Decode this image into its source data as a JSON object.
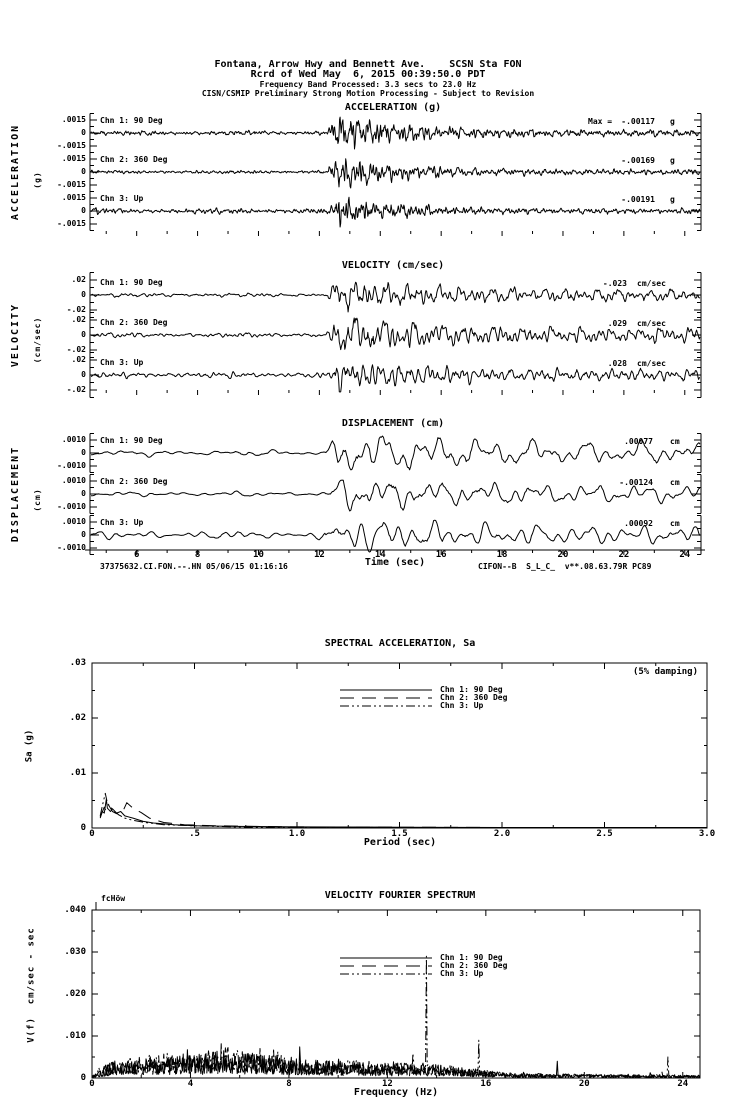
{
  "header": {
    "line1": "Fontana, Arrow Hwy and Bennett Ave.    SCSN Sta FON",
    "line2": "Rcrd of Wed May  6, 2015 00:39:50.0 PDT",
    "line3": "Frequency Band Processed: 3.3 secs to 23.0 Hz",
    "line4": "CISN/CSMIP Preliminary Strong Motion Processing - Subject to Revision"
  },
  "footer": {
    "left": "37375632.CI.FON.--.HN 05/06/15 01:16:16",
    "right": "CIFON--B  S_L_C_  v**.08.63.79R PC89"
  },
  "chart_data": [
    {
      "id": "timeseries",
      "type": "line",
      "xlabel": "Time (sec)",
      "x_range_sec": [
        4.5,
        24.5
      ],
      "x_ticks": [
        6,
        8,
        10,
        12,
        14,
        16,
        18,
        20,
        22,
        24
      ],
      "event_onset_sec": 12.2,
      "sections": [
        {
          "title": "ACCELERATION (g)",
          "side_label": "ACCELERATION",
          "side_unit": "(g)",
          "ylim": [
            -0.0015,
            0.0015
          ],
          "y_tick_labels": [
            ".0015",
            "0",
            "-.0015"
          ],
          "channels": [
            {
              "label": "Chn 1: 90 Deg",
              "max_prefix": "Max =",
              "max_value": "-.00117",
              "unit": "g"
            },
            {
              "label": "Chn 2: 360 Deg",
              "max_value": "-.00169",
              "unit": "g"
            },
            {
              "label": "Chn 3: Up",
              "max_value": "-.00191",
              "unit": "g"
            }
          ]
        },
        {
          "title": "VELOCITY (cm/sec)",
          "side_label": "VELOCITY",
          "side_unit": "(cm/sec)",
          "ylim": [
            -0.02,
            0.02
          ],
          "y_tick_labels": [
            ".02",
            "0",
            "-.02"
          ],
          "channels": [
            {
              "label": "Chn 1: 90 Deg",
              "max_value": "-.023",
              "unit": "cm/sec"
            },
            {
              "label": "Chn 2: 360 Deg",
              "max_value": ".029",
              "unit": "cm/sec"
            },
            {
              "label": "Chn 3: Up",
              "max_value": ".028",
              "unit": "cm/sec"
            }
          ]
        },
        {
          "title": "DISPLACEMENT (cm)",
          "side_label": "DISPLACEMENT",
          "side_unit": "(cm)",
          "ylim": [
            -0.001,
            0.001
          ],
          "y_tick_labels": [
            ".0010",
            "0",
            "-.0010"
          ],
          "channels": [
            {
              "label": "Chn 1: 90 Deg",
              "max_value": ".00077",
              "unit": "cm"
            },
            {
              "label": "Chn 2: 360 Deg",
              "max_value": "-.00124",
              "unit": "cm"
            },
            {
              "label": "Chn 3: Up",
              "max_value": ".00092",
              "unit": "cm"
            }
          ]
        }
      ]
    },
    {
      "id": "spectral_acceleration",
      "type": "line",
      "title": "SPECTRAL ACCELERATION, Sa",
      "annotation": "(5% damping)",
      "xlabel": "Period (sec)",
      "ylabel": "Sa (g)",
      "xlim": [
        0,
        3.0
      ],
      "ylim": [
        0,
        0.03
      ],
      "x_tick_labels": [
        "0",
        ".5",
        "1.0",
        "1.5",
        "2.0",
        "2.5",
        "3.0"
      ],
      "y_tick_labels": [
        "0",
        ".01",
        ".02",
        ".03"
      ],
      "legend": [
        {
          "label": "Chn 1: 90 Deg",
          "style": "solid"
        },
        {
          "label": "Chn 2: 360 Deg",
          "style": "long-dash"
        },
        {
          "label": "Chn 3: Up",
          "style": "dash-dot-dot"
        }
      ],
      "series": [
        {
          "name": "Chn 1: 90 Deg",
          "points": [
            [
              0.04,
              0.0018
            ],
            [
              0.05,
              0.003
            ],
            [
              0.06,
              0.0027
            ],
            [
              0.07,
              0.0052
            ],
            [
              0.075,
              0.0036
            ],
            [
              0.09,
              0.003
            ],
            [
              0.1,
              0.0035
            ],
            [
              0.12,
              0.0027
            ],
            [
              0.14,
              0.003
            ],
            [
              0.16,
              0.0022
            ],
            [
              0.2,
              0.0018
            ],
            [
              0.25,
              0.0012
            ],
            [
              0.3,
              0.0009
            ],
            [
              0.4,
              0.0006
            ],
            [
              0.5,
              0.0004
            ],
            [
              0.7,
              0.0003
            ],
            [
              1.0,
              0.0002
            ],
            [
              1.5,
              0.00015
            ],
            [
              2.0,
              0.0001
            ],
            [
              2.5,
              0.0001
            ],
            [
              3.0,
              0.0001
            ]
          ]
        },
        {
          "name": "Chn 2: 360 Deg",
          "points": [
            [
              0.04,
              0.002
            ],
            [
              0.06,
              0.0038
            ],
            [
              0.07,
              0.003
            ],
            [
              0.08,
              0.0042
            ],
            [
              0.1,
              0.003
            ],
            [
              0.12,
              0.0026
            ],
            [
              0.15,
              0.003
            ],
            [
              0.17,
              0.0046
            ],
            [
              0.2,
              0.0036
            ],
            [
              0.24,
              0.0028
            ],
            [
              0.28,
              0.0018
            ],
            [
              0.35,
              0.001
            ],
            [
              0.45,
              0.0006
            ],
            [
              0.6,
              0.0004
            ],
            [
              0.8,
              0.0003
            ],
            [
              1.0,
              0.0002
            ],
            [
              1.5,
              0.00015
            ],
            [
              2.0,
              0.0001
            ],
            [
              3.0,
              0.0001
            ]
          ]
        },
        {
          "name": "Chn 3: Up",
          "points": [
            [
              0.04,
              0.0022
            ],
            [
              0.05,
              0.004
            ],
            [
              0.065,
              0.0063
            ],
            [
              0.075,
              0.0045
            ],
            [
              0.09,
              0.0038
            ],
            [
              0.11,
              0.003
            ],
            [
              0.13,
              0.0024
            ],
            [
              0.16,
              0.0018
            ],
            [
              0.2,
              0.0014
            ],
            [
              0.26,
              0.001
            ],
            [
              0.35,
              0.0006
            ],
            [
              0.5,
              0.0004
            ],
            [
              0.7,
              0.0002
            ],
            [
              1.0,
              0.00015
            ],
            [
              1.5,
              0.0001
            ],
            [
              2.0,
              0.0001
            ],
            [
              3.0,
              8e-05
            ]
          ]
        }
      ]
    },
    {
      "id": "velocity_fourier_spectrum",
      "type": "line",
      "title": "VELOCITY FOURIER SPECTRUM",
      "corner_label": "fcHöw",
      "xlabel": "Frequency (Hz)",
      "ylabel": "V(f)  cm/sec - sec",
      "xlim": [
        0,
        24.7
      ],
      "ylim": [
        0,
        0.04
      ],
      "x_tick_labels": [
        "0",
        "4",
        "8",
        "12",
        "16",
        "20",
        "24"
      ],
      "y_tick_labels": [
        "0",
        ".010",
        ".020",
        ".030",
        ".040"
      ],
      "legend": [
        {
          "label": "Chn 1: 90 Deg",
          "style": "solid"
        },
        {
          "label": "Chn 2: 360 Deg",
          "style": "long-dash"
        },
        {
          "label": "Chn 3: Up",
          "style": "dash-dot-dot"
        }
      ],
      "noise_envelope": [
        [
          0,
          0.0005
        ],
        [
          0.5,
          0.003
        ],
        [
          1,
          0.0045
        ],
        [
          2,
          0.005
        ],
        [
          3,
          0.0055
        ],
        [
          4,
          0.006
        ],
        [
          5,
          0.0065
        ],
        [
          5.5,
          0.007
        ],
        [
          6,
          0.0065
        ],
        [
          7,
          0.0068
        ],
        [
          7.5,
          0.006
        ],
        [
          8,
          0.0046
        ],
        [
          9,
          0.0045
        ],
        [
          10,
          0.0042
        ],
        [
          11,
          0.0038
        ],
        [
          12,
          0.0036
        ],
        [
          13,
          0.0035
        ],
        [
          14,
          0.0032
        ],
        [
          15,
          0.0025
        ],
        [
          16,
          0.0018
        ],
        [
          17,
          0.0012
        ],
        [
          18,
          0.001
        ],
        [
          19,
          0.001
        ],
        [
          20,
          0.0009
        ],
        [
          21,
          0.0008
        ],
        [
          22,
          0.0008
        ],
        [
          23,
          0.0008
        ],
        [
          24,
          0.0007
        ],
        [
          24.7,
          0.0006
        ]
      ],
      "spikes": [
        {
          "channel": "Chn 3: Up",
          "freq_hz": 13.6,
          "value": 0.029
        },
        {
          "channel": "Chn 3: Up",
          "freq_hz": 15.7,
          "value": 0.009
        },
        {
          "channel": "Chn 1: 90 Deg",
          "freq_hz": 18.9,
          "value": 0.004
        },
        {
          "channel": "Chn 3: Up",
          "freq_hz": 23.4,
          "value": 0.005
        }
      ]
    }
  ]
}
